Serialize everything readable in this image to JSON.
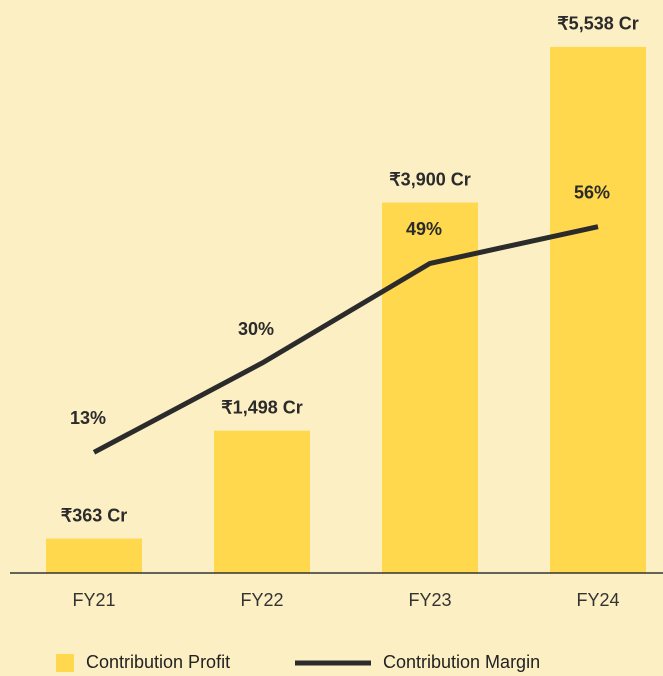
{
  "chart_data": {
    "type": "bar-line",
    "categories": [
      "FY21",
      "FY22",
      "FY23",
      "FY24"
    ],
    "series": [
      {
        "name": "Contribution Profit",
        "type": "bar",
        "color": "#ffd84d",
        "values": [
          363,
          1498,
          3900,
          5538
        ],
        "value_labels": [
          "₹363 Cr",
          "₹1,498 Cr",
          "₹3,900 Cr",
          "₹5,538 Cr"
        ]
      },
      {
        "name": "Contribution Margin",
        "type": "line",
        "axis": "y2",
        "color": "#2b2b2b",
        "values": [
          13,
          30,
          49,
          56
        ],
        "value_labels": [
          "13%",
          "30%",
          "49%",
          "56%"
        ]
      }
    ],
    "ylim": [
      0,
      5800
    ],
    "y2lim": [
      -10,
      95
    ]
  }
}
